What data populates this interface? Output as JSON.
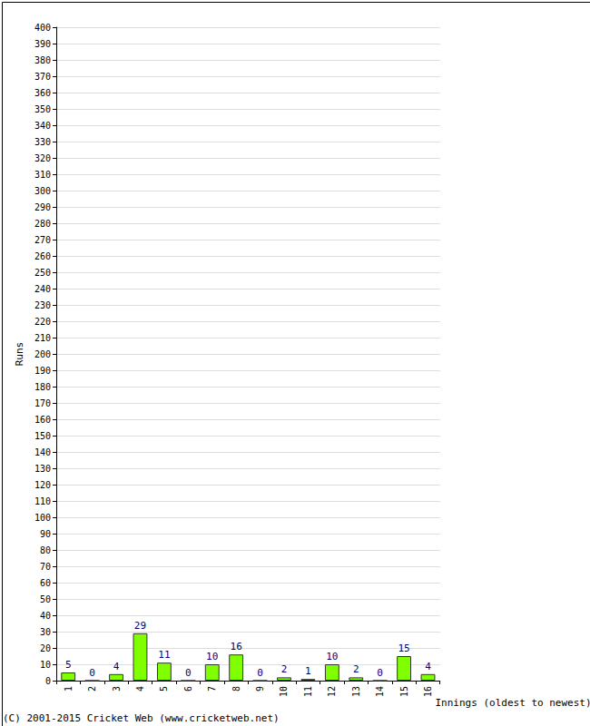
{
  "chart_data": {
    "type": "bar",
    "x_label": "Innings (oldest to newest)",
    "y_label": "Runs",
    "annotations": [
      "(C) 2001-2015 Cricket Web (www.cricketweb.net)"
    ],
    "categories": [
      "1",
      "2",
      "3",
      "4",
      "5",
      "6",
      "7",
      "8",
      "9",
      "10",
      "11",
      "12",
      "13",
      "14",
      "15",
      "16"
    ],
    "values": [
      5,
      0,
      4,
      29,
      11,
      0,
      10,
      16,
      0,
      2,
      1,
      10,
      2,
      0,
      15,
      4
    ],
    "color": "#80ff00",
    "ylim": [
      0,
      400
    ],
    "yticks": [
      0,
      10,
      20,
      30,
      40,
      50,
      60,
      70,
      80,
      90,
      100,
      110,
      120,
      130,
      140,
      150,
      160,
      170,
      180,
      190,
      200,
      210,
      220,
      230,
      240,
      250,
      260,
      270,
      280,
      290,
      300,
      310,
      320,
      330,
      340,
      350,
      360,
      370,
      380,
      390,
      400
    ],
    "grid": true,
    "data_labels": true
  }
}
